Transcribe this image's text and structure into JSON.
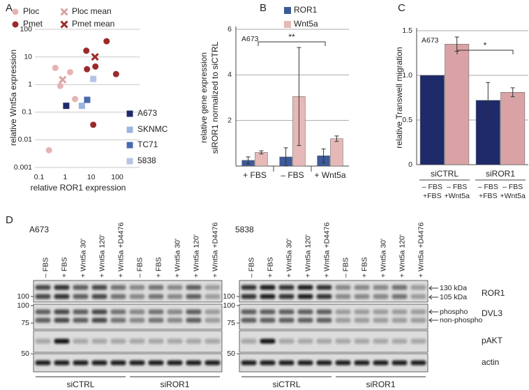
{
  "chart_data": [
    {
      "type": "scatter",
      "panel": "A",
      "x_label": "relative ROR1 expression",
      "y_label": "relative Wnt5a expression",
      "xscale": "log",
      "yscale": "log",
      "xlim": [
        0.1,
        100
      ],
      "ylim": [
        0.001,
        100
      ],
      "xticks": [
        0.1,
        1,
        10,
        100
      ],
      "yticks": [
        0.001,
        0.01,
        0.1,
        1,
        10,
        100
      ],
      "grid": true,
      "series": [
        {
          "name": "Ploc",
          "color": "#e6b3b3",
          "marker": "circle",
          "x": [
            0.24,
            0.42,
            0.65,
            1.55,
            2.4
          ],
          "values": [
            0.0042,
            4,
            0.9,
            2.8,
            0.3
          ]
        },
        {
          "name": "Ploc mean",
          "color": "#dba0a0",
          "marker": "x",
          "x": [
            0.8
          ],
          "values": [
            1.5
          ]
        },
        {
          "name": "Pmet",
          "color": "#9b2a2a",
          "marker": "circle",
          "x": [
            6.5,
            6.9,
            14.5,
            39,
            90,
            12
          ],
          "values": [
            16.8,
            3.6,
            4.5,
            37,
            2.4,
            0.035
          ]
        },
        {
          "name": "Pmet mean",
          "color": "#9b2a2a",
          "marker": "x",
          "x": [
            14
          ],
          "values": [
            10
          ]
        },
        {
          "name": "A673",
          "color": "#1f2a6b",
          "marker": "square",
          "x": [
            1.1
          ],
          "values": [
            0.17
          ]
        },
        {
          "name": "SKNMC",
          "color": "#9bb5de",
          "marker": "square",
          "x": [
            4.4
          ],
          "values": [
            0.17
          ]
        },
        {
          "name": "TC71",
          "color": "#4a6aad",
          "marker": "square",
          "x": [
            7
          ],
          "values": [
            0.28
          ]
        },
        {
          "name": "5838",
          "color": "#b7c4e6",
          "marker": "square",
          "x": [
            12
          ],
          "values": [
            1.6
          ]
        }
      ]
    },
    {
      "type": "bar",
      "panel": "B",
      "title": "A673",
      "y_label": [
        "relative gene expression",
        "siROR1 normalized to siCTRL"
      ],
      "categories": [
        "+ FBS",
        "– FBS",
        "+ Wnt5a"
      ],
      "ylim": [
        0,
        6
      ],
      "yticks": [
        2,
        4,
        6
      ],
      "grid": true,
      "significance": "**",
      "series": [
        {
          "name": "ROR1",
          "color": "#3d5a99",
          "values": [
            0.25,
            0.4,
            0.45
          ],
          "errors": [
            0.15,
            0.4,
            0.3
          ]
        },
        {
          "name": "Wnt5a",
          "color": "#e6b9b8",
          "values": [
            0.6,
            3.05,
            1.2
          ],
          "errors": [
            0.07,
            2.15,
            0.12
          ]
        }
      ]
    },
    {
      "type": "bar",
      "panel": "C",
      "title": "A673",
      "y_label": "relative Transwell migration",
      "categories": [
        "siCTRL",
        "siROR1"
      ],
      "ylim": [
        0,
        1.5
      ],
      "yticks": [
        0,
        0.5,
        {
          "value": 1,
          "label": "1.0"
        },
        1.5
      ],
      "grid": true,
      "significance": "*",
      "series": [
        {
          "color": "#1f2a6b",
          "values": [
            1,
            0.72
          ],
          "errors": [
            null,
            0.2
          ],
          "labels": [
            [
              "– FBS",
              "+FBS"
            ],
            [
              "– FBS",
              "+FBS"
            ]
          ]
        },
        {
          "color": "#d9a3a6",
          "values": [
            1.35,
            0.81
          ],
          "errors": [
            0.08,
            0.05
          ],
          "labels": [
            [
              "– FBS",
              "+Wnt5a"
            ],
            [
              "– FBS",
              "+Wnt5a"
            ]
          ]
        }
      ]
    }
  ],
  "blot": {
    "panel": "D",
    "blots": [
      {
        "cell_line": "A673",
        "lanes": [
          "– FBS",
          "+ FBS",
          "+ Wnt5a 30'",
          "+ Wnt5a 120'",
          "+ Wnt5a +D4476",
          "– FBS",
          "+ FBS",
          "+ Wnt5a 30'",
          "+ Wnt5a 120'",
          "+ Wnt5a +D4476"
        ],
        "groups": [
          "siCTRL",
          "siROR1"
        ],
        "markers": [
          "100",
          "100",
          "75",
          "50"
        ]
      },
      {
        "cell_line": "5838",
        "lanes": [
          "– FBS",
          "+ FBS",
          "+ Wnt5a 30'",
          "+ Wnt5a 120'",
          "+ Wnt5a +D4476",
          "– FBS",
          "+ FBS",
          "+ Wnt5a 30'",
          "+ Wnt5a 120'",
          "+ Wnt5a +D4476"
        ],
        "groups": [
          "siCTRL",
          "siROR1"
        ],
        "markers": [
          "100",
          "100",
          "75",
          "50"
        ]
      }
    ],
    "bands": [
      "ROR1",
      "DVL3",
      "pAKT",
      "actin"
    ],
    "annotations": [
      "130 kDa",
      "105 kDa",
      "phospho",
      "non-phospho"
    ]
  }
}
